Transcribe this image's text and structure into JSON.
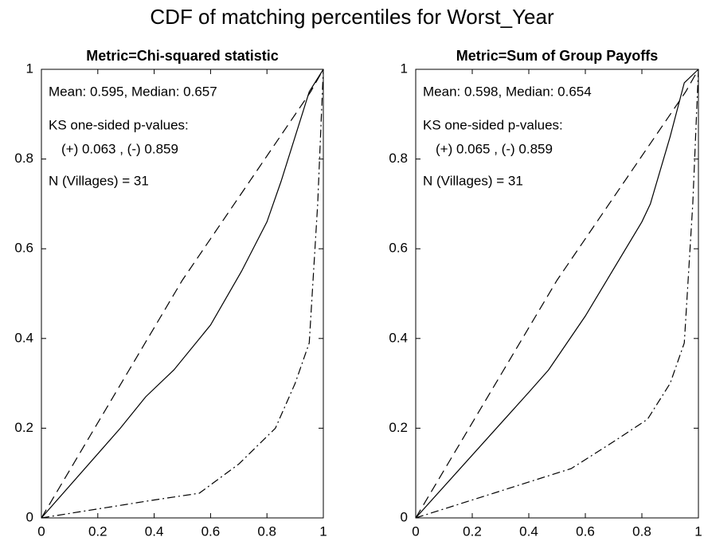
{
  "title": "CDF of matching percentiles for Worst_Year",
  "chart_data": [
    {
      "type": "line",
      "title": "Metric=Chi-squared statistic",
      "annotations": [
        "Mean: 0.595,  Median: 0.657",
        "KS one-sided p-values:",
        "(+) 0.063 ,  (-) 0.859",
        "N (Villages) = 31"
      ],
      "xlim": [
        0,
        1
      ],
      "ylim": [
        0,
        1
      ],
      "xticks": [
        0,
        0.2,
        0.4,
        0.6,
        0.8,
        1
      ],
      "yticks": [
        0,
        0.2,
        0.4,
        0.6,
        0.8,
        1
      ],
      "series": [
        {
          "style": "solid",
          "color": "#000000",
          "x": [
            0,
            0.28,
            0.37,
            0.47,
            0.6,
            0.71,
            0.8,
            0.85,
            0.9,
            0.95,
            1
          ],
          "values": [
            0,
            0.2,
            0.27,
            0.33,
            0.43,
            0.55,
            0.66,
            0.75,
            0.85,
            0.95,
            1
          ]
        },
        {
          "style": "dashed",
          "color": "#000000",
          "x": [
            0,
            0.5,
            0.955,
            1
          ],
          "values": [
            0,
            0.53,
            0.95,
            1
          ]
        },
        {
          "style": "dashdot",
          "color": "#000000",
          "x": [
            0,
            0.2,
            0.4,
            0.56,
            0.7,
            0.83,
            0.9,
            0.95,
            0.98,
            1
          ],
          "values": [
            0,
            0.02,
            0.04,
            0.055,
            0.12,
            0.2,
            0.3,
            0.39,
            0.7,
            1
          ]
        }
      ]
    },
    {
      "type": "line",
      "title": "Metric=Sum of Group Payoffs",
      "annotations": [
        "Mean: 0.598,  Median: 0.654",
        "KS one-sided p-values:",
        "(+) 0.065 ,  (-) 0.859",
        "N (Villages) = 31"
      ],
      "xlim": [
        0,
        1
      ],
      "ylim": [
        0,
        1
      ],
      "xticks": [
        0,
        0.2,
        0.4,
        0.6,
        0.8,
        1
      ],
      "yticks": [
        0,
        0.2,
        0.4,
        0.6,
        0.8,
        1
      ],
      "series": [
        {
          "style": "solid",
          "color": "#000000",
          "x": [
            0,
            0.4,
            0.47,
            0.6,
            0.8,
            0.83,
            0.9,
            0.95,
            1
          ],
          "values": [
            0,
            0.28,
            0.33,
            0.45,
            0.66,
            0.7,
            0.85,
            0.97,
            1
          ]
        },
        {
          "style": "dashed",
          "color": "#000000",
          "x": [
            0,
            0.5,
            0.955,
            1
          ],
          "values": [
            0,
            0.53,
            0.95,
            1
          ]
        },
        {
          "style": "dashdot",
          "color": "#000000",
          "x": [
            0,
            0.2,
            0.4,
            0.55,
            0.7,
            0.82,
            0.9,
            0.95,
            0.98,
            1
          ],
          "values": [
            0,
            0.04,
            0.08,
            0.11,
            0.17,
            0.22,
            0.3,
            0.39,
            0.7,
            1
          ]
        }
      ]
    }
  ]
}
